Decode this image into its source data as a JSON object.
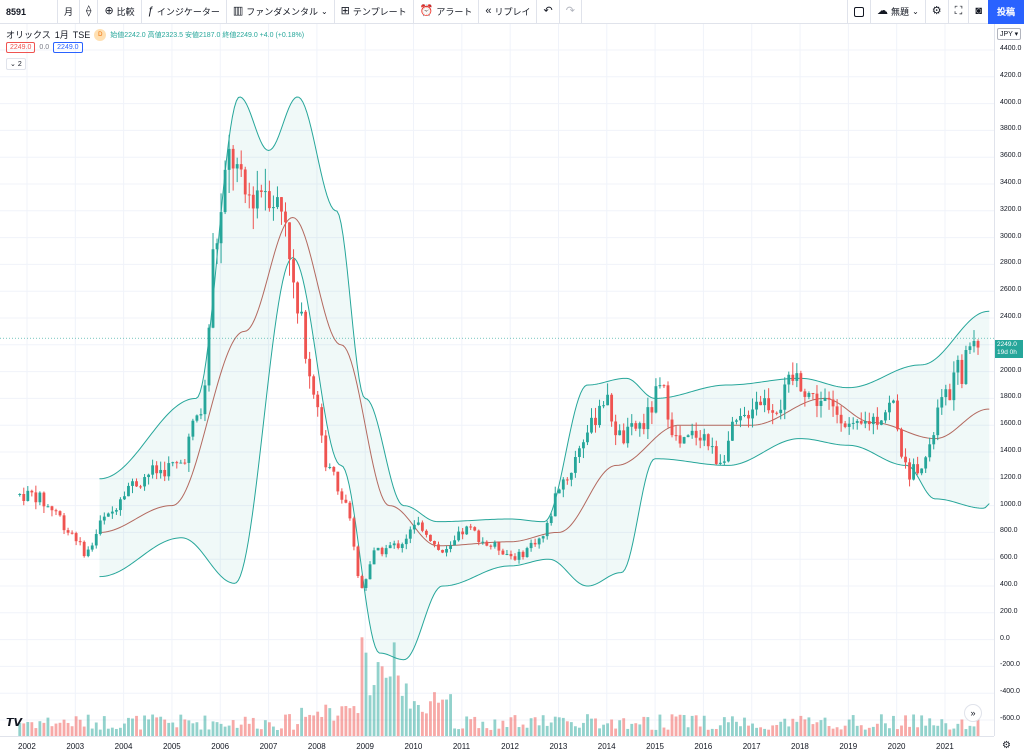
{
  "toolbar": {
    "symbol": "8591",
    "interval": "月",
    "compare_label": "比較",
    "indicators_label": "インジケーター",
    "fundamentals_label": "ファンダメンタル",
    "templates_label": "テンプレート",
    "alert_label": "アラート",
    "replay_label": "リプレイ",
    "layout_label": "無題",
    "publish_label": "投稿"
  },
  "legend": {
    "title": "オリックス",
    "interval": "1月",
    "exchange": "TSE",
    "badge": "D",
    "ohlc": "始値2242.0 高値2323.5 安値2187.0 終値2249.0 +4.0 (+0.18%)",
    "bid": "2249.0",
    "spread": "0.0",
    "ask": "2249.0",
    "collapse": "2"
  },
  "price_axis": {
    "currency": "JPY",
    "last_price": "2249.0",
    "countdown": "19d 0h",
    "ticks": [
      "4400.0",
      "4200.0",
      "4000.0",
      "3800.0",
      "3600.0",
      "3400.0",
      "3200.0",
      "3000.0",
      "2800.0",
      "2600.0",
      "2400.0",
      "2200.0",
      "2000.0",
      "1800.0",
      "1600.0",
      "1400.0",
      "1200.0",
      "1000.0",
      "800.0",
      "600.0",
      "400.0",
      "200.0",
      "0.0",
      "-200.0",
      "-400.0",
      "-600.0"
    ]
  },
  "time_axis": {
    "ticks": [
      "2002",
      "2003",
      "2004",
      "2005",
      "2006",
      "2007",
      "2008",
      "2009",
      "2010",
      "2011",
      "2012",
      "2013",
      "2014",
      "2015",
      "2016",
      "2017",
      "2018",
      "2019",
      "2020",
      "2021"
    ]
  },
  "colors": {
    "up": "#26a69a",
    "down": "#ef5350",
    "band": "#26a69a",
    "basis": "#b3695f",
    "accent": "#2962ff"
  },
  "chart_data": {
    "type": "candlestick",
    "period": "monthly",
    "symbol": "オリックス",
    "series": [
      {
        "name": "price",
        "anchors": [
          {
            "x": 2001.8,
            "y": 1080
          },
          {
            "x": 2002.2,
            "y": 1080
          },
          {
            "x": 2002.6,
            "y": 980
          },
          {
            "x": 2003.0,
            "y": 800
          },
          {
            "x": 2003.3,
            "y": 650
          },
          {
            "x": 2003.7,
            "y": 900
          },
          {
            "x": 2004.2,
            "y": 1150
          },
          {
            "x": 2004.7,
            "y": 1250
          },
          {
            "x": 2005.2,
            "y": 1300
          },
          {
            "x": 2005.7,
            "y": 1700
          },
          {
            "x": 2006.0,
            "y": 3000
          },
          {
            "x": 2006.3,
            "y": 3600
          },
          {
            "x": 2006.6,
            "y": 3300
          },
          {
            "x": 2007.0,
            "y": 3400
          },
          {
            "x": 2007.4,
            "y": 3200
          },
          {
            "x": 2007.7,
            "y": 2400
          },
          {
            "x": 2008.0,
            "y": 1900
          },
          {
            "x": 2008.3,
            "y": 1300
          },
          {
            "x": 2008.7,
            "y": 1000
          },
          {
            "x": 2009.0,
            "y": 400
          },
          {
            "x": 2009.3,
            "y": 650
          },
          {
            "x": 2009.7,
            "y": 700
          },
          {
            "x": 2010.2,
            "y": 850
          },
          {
            "x": 2010.7,
            "y": 650
          },
          {
            "x": 2011.2,
            "y": 820
          },
          {
            "x": 2011.7,
            "y": 700
          },
          {
            "x": 2012.2,
            "y": 620
          },
          {
            "x": 2012.7,
            "y": 750
          },
          {
            "x": 2013.2,
            "y": 1200
          },
          {
            "x": 2013.7,
            "y": 1550
          },
          {
            "x": 2014.0,
            "y": 1800
          },
          {
            "x": 2014.4,
            "y": 1500
          },
          {
            "x": 2014.8,
            "y": 1600
          },
          {
            "x": 2015.2,
            "y": 1850
          },
          {
            "x": 2015.6,
            "y": 1450
          },
          {
            "x": 2016.0,
            "y": 1550
          },
          {
            "x": 2016.4,
            "y": 1350
          },
          {
            "x": 2016.8,
            "y": 1600
          },
          {
            "x": 2017.2,
            "y": 1800
          },
          {
            "x": 2017.6,
            "y": 1750
          },
          {
            "x": 2018.0,
            "y": 1950
          },
          {
            "x": 2018.4,
            "y": 1800
          },
          {
            "x": 2018.9,
            "y": 1700
          },
          {
            "x": 2019.2,
            "y": 1550
          },
          {
            "x": 2019.6,
            "y": 1650
          },
          {
            "x": 2020.0,
            "y": 1750
          },
          {
            "x": 2020.3,
            "y": 1250
          },
          {
            "x": 2020.7,
            "y": 1350
          },
          {
            "x": 2021.0,
            "y": 1750
          },
          {
            "x": 2021.4,
            "y": 2000
          },
          {
            "x": 2021.7,
            "y": 2249
          }
        ]
      },
      {
        "name": "bollinger_upper",
        "anchors": [
          {
            "x": 2003.5,
            "y": 1200
          },
          {
            "x": 2005.5,
            "y": 1800
          },
          {
            "x": 2006.4,
            "y": 4050
          },
          {
            "x": 2007.0,
            "y": 3650
          },
          {
            "x": 2007.6,
            "y": 4050
          },
          {
            "x": 2008.4,
            "y": 3200
          },
          {
            "x": 2009.0,
            "y": 1800
          },
          {
            "x": 2009.8,
            "y": 1000
          },
          {
            "x": 2010.5,
            "y": 880
          },
          {
            "x": 2012.0,
            "y": 900
          },
          {
            "x": 2012.7,
            "y": 880
          },
          {
            "x": 2013.6,
            "y": 1900
          },
          {
            "x": 2014.4,
            "y": 1950
          },
          {
            "x": 2015.0,
            "y": 1800
          },
          {
            "x": 2016.5,
            "y": 1900
          },
          {
            "x": 2018.0,
            "y": 1950
          },
          {
            "x": 2019.0,
            "y": 1880
          },
          {
            "x": 2020.5,
            "y": 2050
          },
          {
            "x": 2021.9,
            "y": 2450
          }
        ]
      },
      {
        "name": "bollinger_basis",
        "anchors": [
          {
            "x": 2003.5,
            "y": 800
          },
          {
            "x": 2005.0,
            "y": 1000
          },
          {
            "x": 2006.5,
            "y": 2300
          },
          {
            "x": 2007.5,
            "y": 3150
          },
          {
            "x": 2008.5,
            "y": 2200
          },
          {
            "x": 2009.5,
            "y": 1000
          },
          {
            "x": 2010.5,
            "y": 700
          },
          {
            "x": 2012.0,
            "y": 730
          },
          {
            "x": 2013.0,
            "y": 800
          },
          {
            "x": 2014.2,
            "y": 1300
          },
          {
            "x": 2015.5,
            "y": 1600
          },
          {
            "x": 2017.0,
            "y": 1600
          },
          {
            "x": 2018.5,
            "y": 1800
          },
          {
            "x": 2019.5,
            "y": 1620
          },
          {
            "x": 2020.8,
            "y": 1500
          },
          {
            "x": 2021.9,
            "y": 1720
          }
        ]
      },
      {
        "name": "bollinger_lower",
        "anchors": [
          {
            "x": 2003.5,
            "y": 470
          },
          {
            "x": 2005.2,
            "y": 760
          },
          {
            "x": 2006.3,
            "y": 420
          },
          {
            "x": 2007.5,
            "y": 2850
          },
          {
            "x": 2008.5,
            "y": 1300
          },
          {
            "x": 2009.3,
            "y": -100
          },
          {
            "x": 2009.8,
            "y": -150
          },
          {
            "x": 2010.6,
            "y": 400
          },
          {
            "x": 2012.0,
            "y": 550
          },
          {
            "x": 2012.8,
            "y": 600
          },
          {
            "x": 2013.6,
            "y": 400
          },
          {
            "x": 2014.3,
            "y": 500
          },
          {
            "x": 2015.0,
            "y": 1350
          },
          {
            "x": 2016.5,
            "y": 1300
          },
          {
            "x": 2018.0,
            "y": 1500
          },
          {
            "x": 2019.0,
            "y": 1450
          },
          {
            "x": 2020.2,
            "y": 1300
          },
          {
            "x": 2020.8,
            "y": 1050
          },
          {
            "x": 2021.8,
            "y": 980
          },
          {
            "x": 2021.95,
            "y": 1020
          }
        ]
      }
    ],
    "last_close": 2249.0,
    "ylim": [
      -650,
      4500
    ],
    "xlim": [
      2001.5,
      2022.0
    ]
  }
}
